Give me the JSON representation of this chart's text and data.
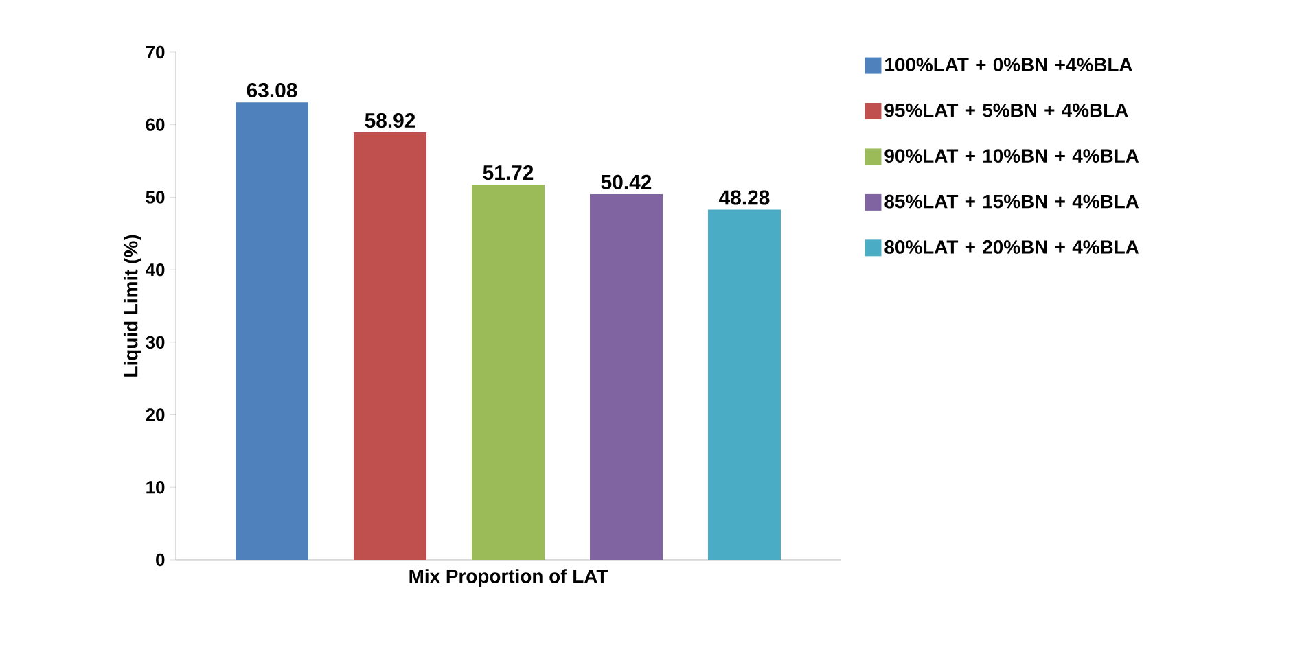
{
  "chart_data": {
    "type": "bar",
    "xlabel": "Mix Proportion of LAT",
    "ylabel": "Liquid Limit (%)",
    "categories": [
      null
    ],
    "series": [
      {
        "name": "100%LAT + 0%BN +4%BLA",
        "color": "#4f81bd",
        "values": [
          63.08
        ]
      },
      {
        "name": "95%LAT + 5%BN + 4%BLA",
        "color": "#c0504d",
        "values": [
          58.92
        ]
      },
      {
        "name": "90%LAT + 10%BN + 4%BLA",
        "color": "#9bbb59",
        "values": [
          51.72
        ]
      },
      {
        "name": "85%LAT + 15%BN + 4%BLA",
        "color": "#8064a2",
        "values": [
          50.42
        ]
      },
      {
        "name": "80%LAT + 20%BN + 4%BLA",
        "color": "#4bacc6",
        "values": [
          48.28
        ]
      }
    ],
    "ylim": [
      0,
      70
    ],
    "yticks": [
      0,
      10,
      20,
      30,
      40,
      50,
      60,
      70
    ],
    "grid": false,
    "legend": "right",
    "data_labels": true
  }
}
